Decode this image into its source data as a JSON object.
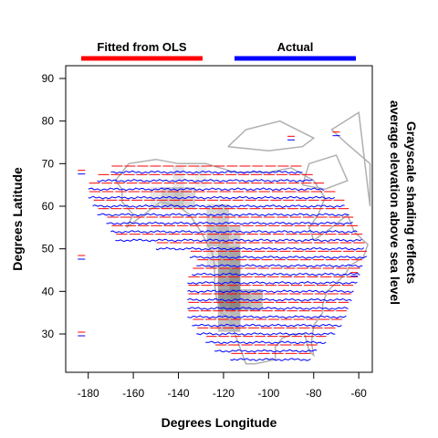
{
  "chart_data": {
    "type": "line",
    "xlabel": "Degrees Longitude",
    "ylabel": "Degrees Latitude",
    "side_note": [
      "Grayscale shading reflects",
      "average elevation above sea level"
    ],
    "xlim": [
      -190,
      -54
    ],
    "ylim": [
      21,
      93
    ],
    "x_ticks": [
      -180,
      -160,
      -140,
      -120,
      -100,
      -80,
      -60
    ],
    "y_ticks": [
      30,
      40,
      50,
      60,
      70,
      80,
      90
    ],
    "legend": [
      {
        "name": "Fitted from OLS",
        "color": "#ff0000"
      },
      {
        "name": "Actual",
        "color": "#0000ff"
      }
    ],
    "latitude_bands": [
      {
        "lat": 25,
        "lon_range": [
          -117,
          -81
        ]
      },
      {
        "lat": 27,
        "lon_range": [
          -124,
          -78
        ]
      },
      {
        "lat": 29,
        "lon_range": [
          -128,
          -74
        ]
      },
      {
        "lat": 31,
        "lon_range": [
          -132,
          -70
        ]
      },
      {
        "lat": 33,
        "lon_range": [
          -134,
          -67
        ]
      },
      {
        "lat": 35,
        "lon_range": [
          -136,
          -65
        ]
      },
      {
        "lat": 37,
        "lon_range": [
          -136,
          -64
        ]
      },
      {
        "lat": 39,
        "lon_range": [
          -136,
          -63
        ]
      },
      {
        "lat": 41,
        "lon_range": [
          -136,
          -62
        ]
      },
      {
        "lat": 43,
        "lon_range": [
          -136,
          -60
        ]
      },
      {
        "lat": 45,
        "lon_range": [
          -134,
          -59
        ]
      },
      {
        "lat": 47,
        "lon_range": [
          -132,
          -58
        ]
      },
      {
        "lat": 49,
        "lon_range": [
          -135,
          -56
        ]
      },
      {
        "lat": 51,
        "lon_range": [
          -150,
          -57
        ]
      },
      {
        "lat": 53,
        "lon_range": [
          -168,
          -58
        ]
      },
      {
        "lat": 55,
        "lon_range": [
          -170,
          -60
        ]
      },
      {
        "lat": 57,
        "lon_range": [
          -172,
          -62
        ]
      },
      {
        "lat": 59,
        "lon_range": [
          -176,
          -64
        ]
      },
      {
        "lat": 61,
        "lon_range": [
          -178,
          -66
        ]
      },
      {
        "lat": 63,
        "lon_range": [
          -180,
          -70
        ]
      },
      {
        "lat": 65,
        "lon_range": [
          -180,
          -75
        ]
      },
      {
        "lat": 67,
        "lon_range": [
          -176,
          -80
        ]
      },
      {
        "lat": 69,
        "lon_range": [
          -170,
          -85
        ]
      }
    ],
    "isolated_points": [
      {
        "lon": -183,
        "lat": 68
      },
      {
        "lon": -183,
        "lat": 48
      },
      {
        "lon": -183,
        "lat": 30
      },
      {
        "lon": -70,
        "lat": 77
      },
      {
        "lon": -90,
        "lat": 76
      },
      {
        "lon": -62,
        "lat": 44
      }
    ],
    "elevation_cells": [
      {
        "lon": -145,
        "lat": 62,
        "level": 0.25
      },
      {
        "lon": -140,
        "lat": 62,
        "level": 0.3
      },
      {
        "lon": -135,
        "lat": 62,
        "level": 0.2
      },
      {
        "lon": -140,
        "lat": 67,
        "level": 0.12
      },
      {
        "lon": -150,
        "lat": 62,
        "level": 0.12
      },
      {
        "lon": -125,
        "lat": 58,
        "level": 0.2
      },
      {
        "lon": -120,
        "lat": 58,
        "level": 0.25
      },
      {
        "lon": -125,
        "lat": 53,
        "level": 0.3
      },
      {
        "lon": -120,
        "lat": 53,
        "level": 0.35
      },
      {
        "lon": -115,
        "lat": 53,
        "level": 0.25
      },
      {
        "lon": -120,
        "lat": 48,
        "level": 0.4
      },
      {
        "lon": -115,
        "lat": 48,
        "level": 0.45
      },
      {
        "lon": -125,
        "lat": 48,
        "level": 0.15
      },
      {
        "lon": -120,
        "lat": 43,
        "level": 0.45
      },
      {
        "lon": -115,
        "lat": 43,
        "level": 0.55
      },
      {
        "lon": -120,
        "lat": 38,
        "level": 0.55
      },
      {
        "lon": -115,
        "lat": 38,
        "level": 0.6
      },
      {
        "lon": -110,
        "lat": 38,
        "level": 0.35
      },
      {
        "lon": -120,
        "lat": 33,
        "level": 0.3
      },
      {
        "lon": -115,
        "lat": 33,
        "level": 0.35
      },
      {
        "lon": -105,
        "lat": 38,
        "level": 0.3
      },
      {
        "lon": -130,
        "lat": 67,
        "level": 0.08
      }
    ],
    "grid": false
  }
}
